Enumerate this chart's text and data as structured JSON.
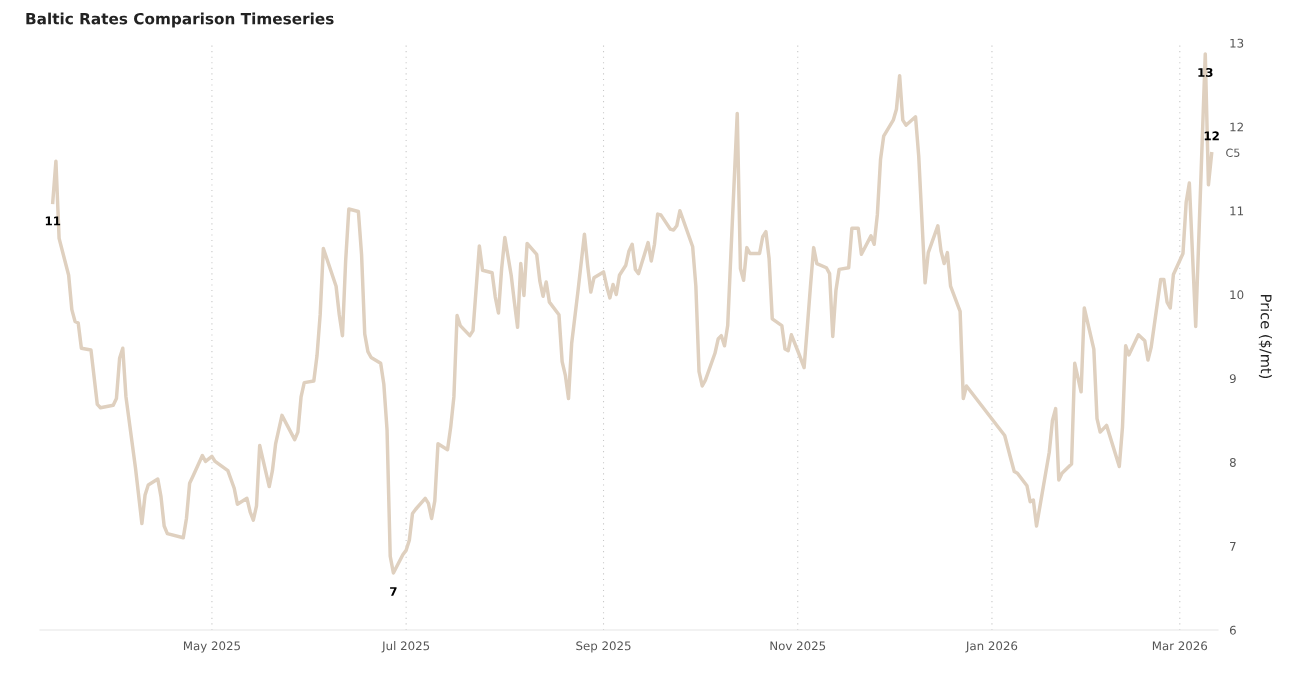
{
  "chart_data": {
    "type": "line",
    "title": "Baltic Rates Comparison Timeseries",
    "ylabel": "Price ($/mt)",
    "xlim": [
      "2025-03-08",
      "2026-03-13"
    ],
    "ylim": [
      6,
      13
    ],
    "yticks": [
      6,
      7,
      8,
      9,
      10,
      11,
      12,
      13
    ],
    "xticks": [
      {
        "value": "2025-05-01",
        "label": "May 2025"
      },
      {
        "value": "2025-07-01",
        "label": "Jul 2025"
      },
      {
        "value": "2025-09-01",
        "label": "Sep 2025"
      },
      {
        "value": "2025-11-01",
        "label": "Nov 2025"
      },
      {
        "value": "2026-01-01",
        "label": "Jan 2026"
      },
      {
        "value": "2026-03-01",
        "label": "Mar 2026"
      }
    ],
    "grid": "x",
    "legend": false,
    "marker": "none",
    "line_style": "solid",
    "series": [
      {
        "name": "C5",
        "color": "#dfd0bf",
        "x": [
          "2025-03-12",
          "2025-03-13",
          "2025-03-14",
          "2025-03-17",
          "2025-03-18",
          "2025-03-19",
          "2025-03-20",
          "2025-03-21",
          "2025-03-24",
          "2025-03-26",
          "2025-03-27",
          "2025-03-31",
          "2025-04-01",
          "2025-04-02",
          "2025-04-03",
          "2025-04-04",
          "2025-04-07",
          "2025-04-09",
          "2025-04-10",
          "2025-04-11",
          "2025-04-14",
          "2025-04-15",
          "2025-04-16",
          "2025-04-17",
          "2025-04-22",
          "2025-04-23",
          "2025-04-24",
          "2025-04-25",
          "2025-04-28",
          "2025-04-29",
          "2025-05-01",
          "2025-05-02",
          "2025-05-06",
          "2025-05-08",
          "2025-05-09",
          "2025-05-12",
          "2025-05-13",
          "2025-05-14",
          "2025-05-15",
          "2025-05-16",
          "2025-05-19",
          "2025-05-20",
          "2025-05-21",
          "2025-05-23",
          "2025-05-27",
          "2025-05-28",
          "2025-05-29",
          "2025-05-30",
          "2025-06-02",
          "2025-06-03",
          "2025-06-04",
          "2025-06-05",
          "2025-06-09",
          "2025-06-10",
          "2025-06-11",
          "2025-06-12",
          "2025-06-13",
          "2025-06-16",
          "2025-06-17",
          "2025-06-18",
          "2025-06-19",
          "2025-06-20",
          "2025-06-23",
          "2025-06-24",
          "2025-06-25",
          "2025-06-26",
          "2025-06-27",
          "2025-06-30",
          "2025-07-01",
          "2025-07-02",
          "2025-07-03",
          "2025-07-04",
          "2025-07-07",
          "2025-07-08",
          "2025-07-09",
          "2025-07-10",
          "2025-07-11",
          "2025-07-14",
          "2025-07-15",
          "2025-07-16",
          "2025-07-17",
          "2025-07-18",
          "2025-07-21",
          "2025-07-22",
          "2025-07-24",
          "2025-07-25",
          "2025-07-28",
          "2025-07-29",
          "2025-07-30",
          "2025-07-31",
          "2025-08-01",
          "2025-08-03",
          "2025-08-04",
          "2025-08-05",
          "2025-08-06",
          "2025-08-07",
          "2025-08-08",
          "2025-08-11",
          "2025-08-12",
          "2025-08-13",
          "2025-08-14",
          "2025-08-15",
          "2025-08-18",
          "2025-08-19",
          "2025-08-20",
          "2025-08-21",
          "2025-08-22",
          "2025-08-24",
          "2025-08-26",
          "2025-08-27",
          "2025-08-28",
          "2025-08-29",
          "2025-09-01",
          "2025-09-02",
          "2025-09-03",
          "2025-09-04",
          "2025-09-05",
          "2025-09-06",
          "2025-09-08",
          "2025-09-09",
          "2025-09-10",
          "2025-09-11",
          "2025-09-12",
          "2025-09-15",
          "2025-09-16",
          "2025-09-17",
          "2025-09-18",
          "2025-09-19",
          "2025-09-22",
          "2025-09-23",
          "2025-09-24",
          "2025-09-25",
          "2025-09-29",
          "2025-09-30",
          "2025-10-01",
          "2025-10-02",
          "2025-10-03",
          "2025-10-06",
          "2025-10-07",
          "2025-10-08",
          "2025-10-09",
          "2025-10-10",
          "2025-10-11",
          "2025-10-13",
          "2025-10-14",
          "2025-10-15",
          "2025-10-16",
          "2025-10-17",
          "2025-10-20",
          "2025-10-21",
          "2025-10-22",
          "2025-10-23",
          "2025-10-24",
          "2025-10-27",
          "2025-10-28",
          "2025-10-29",
          "2025-10-30",
          "2025-11-01",
          "2025-11-03",
          "2025-11-04",
          "2025-11-05",
          "2025-11-06",
          "2025-11-07",
          "2025-11-10",
          "2025-11-11",
          "2025-11-12",
          "2025-11-13",
          "2025-11-14",
          "2025-11-17",
          "2025-11-18",
          "2025-11-20",
          "2025-11-21",
          "2025-11-24",
          "2025-11-25",
          "2025-11-26",
          "2025-11-27",
          "2025-11-28",
          "2025-12-01",
          "2025-12-02",
          "2025-12-03",
          "2025-12-04",
          "2025-12-05",
          "2025-12-08",
          "2025-12-09",
          "2025-12-11",
          "2025-12-12",
          "2025-12-15",
          "2025-12-16",
          "2025-12-17",
          "2025-12-18",
          "2025-12-19",
          "2025-12-22",
          "2025-12-23",
          "2025-12-24",
          "2026-01-05",
          "2026-01-07",
          "2026-01-08",
          "2026-01-09",
          "2026-01-12",
          "2026-01-13",
          "2026-01-14",
          "2026-01-15",
          "2026-01-19",
          "2026-01-20",
          "2026-01-21",
          "2026-01-22",
          "2026-01-23",
          "2026-01-26",
          "2026-01-27",
          "2026-01-29",
          "2026-01-30",
          "2026-02-02",
          "2026-02-03",
          "2026-02-04",
          "2026-02-06",
          "2026-02-10",
          "2026-02-11",
          "2026-02-12",
          "2026-02-13",
          "2026-02-16",
          "2026-02-18",
          "2026-02-19",
          "2026-02-20",
          "2026-02-23",
          "2026-02-24",
          "2026-02-25",
          "2026-02-26",
          "2026-02-27",
          "2026-03-02",
          "2026-03-03",
          "2026-03-04",
          "2026-03-06",
          "2026-03-09",
          "2026-03-10",
          "2026-03-11"
        ],
        "values": [
          11.1,
          11.59,
          10.67,
          10.23,
          9.82,
          9.68,
          9.66,
          9.36,
          9.34,
          8.69,
          8.65,
          8.68,
          8.76,
          9.24,
          9.36,
          8.78,
          7.93,
          7.27,
          7.61,
          7.73,
          7.8,
          7.59,
          7.24,
          7.15,
          7.1,
          7.33,
          7.75,
          7.83,
          8.08,
          8.01,
          8.07,
          8.01,
          7.9,
          7.69,
          7.5,
          7.57,
          7.41,
          7.31,
          7.48,
          8.2,
          7.71,
          7.9,
          8.22,
          8.56,
          8.27,
          8.36,
          8.78,
          8.95,
          8.97,
          9.27,
          9.76,
          10.55,
          10.1,
          9.76,
          9.51,
          10.4,
          11.02,
          10.99,
          10.48,
          9.53,
          9.32,
          9.25,
          9.18,
          8.93,
          8.39,
          6.88,
          6.68,
          6.9,
          6.95,
          7.07,
          7.39,
          7.44,
          7.57,
          7.51,
          7.33,
          7.54,
          8.22,
          8.15,
          8.42,
          8.78,
          9.75,
          9.63,
          9.51,
          9.57,
          10.58,
          10.29,
          10.26,
          9.97,
          9.78,
          10.31,
          10.68,
          10.23,
          9.91,
          9.61,
          10.37,
          9.99,
          10.61,
          10.48,
          10.16,
          9.98,
          10.15,
          9.91,
          9.76,
          9.2,
          9.04,
          8.76,
          9.42,
          10.05,
          10.72,
          10.35,
          10.03,
          10.2,
          10.27,
          10.1,
          9.96,
          10.12,
          10.0,
          10.23,
          10.35,
          10.52,
          10.6,
          10.3,
          10.25,
          10.62,
          10.4,
          10.6,
          10.96,
          10.95,
          10.78,
          10.77,
          10.82,
          11.0,
          10.57,
          10.1,
          9.08,
          8.91,
          8.98,
          9.3,
          9.47,
          9.51,
          9.39,
          9.63,
          10.48,
          12.16,
          10.31,
          10.17,
          10.56,
          10.49,
          10.49,
          10.69,
          10.75,
          10.43,
          9.71,
          9.63,
          9.35,
          9.33,
          9.52,
          9.33,
          9.13,
          9.61,
          10.1,
          10.56,
          10.37,
          10.32,
          10.25,
          9.5,
          10.05,
          10.3,
          10.32,
          10.79,
          10.79,
          10.48,
          10.7,
          10.6,
          10.95,
          11.61,
          11.89,
          12.08,
          12.21,
          12.61,
          12.08,
          12.02,
          12.12,
          11.65,
          10.14,
          10.5,
          10.82,
          10.52,
          10.37,
          10.5,
          10.1,
          9.8,
          8.76,
          8.91,
          8.32,
          8.03,
          7.89,
          7.87,
          7.72,
          7.53,
          7.55,
          7.24,
          8.12,
          8.5,
          8.64,
          7.79,
          7.87,
          7.98,
          9.18,
          8.84,
          9.84,
          9.35,
          8.52,
          8.36,
          8.44,
          7.95,
          8.42,
          9.39,
          9.28,
          9.52,
          9.45,
          9.22,
          9.37,
          10.18,
          10.18,
          9.91,
          9.84,
          10.24,
          10.49,
          11.1,
          11.33,
          9.62,
          12.87,
          11.31,
          11.68
        ],
        "value_labels": [
          "11",
          null,
          null,
          null,
          null,
          null,
          null,
          null,
          null,
          null,
          null,
          null,
          null,
          null,
          null,
          null,
          null,
          null,
          null,
          null,
          null,
          null,
          null,
          null,
          null,
          null,
          null,
          null,
          null,
          null,
          null,
          null,
          null,
          null,
          null,
          null,
          null,
          null,
          null,
          null,
          null,
          null,
          null,
          null,
          null,
          null,
          null,
          null,
          null,
          null,
          null,
          null,
          null,
          null,
          null,
          null,
          null,
          null,
          null,
          null,
          null,
          null,
          null,
          null,
          null,
          null,
          "7",
          null,
          null,
          null,
          null,
          null,
          null,
          null,
          null,
          null,
          null,
          null,
          null,
          null,
          null,
          null,
          null,
          null,
          null,
          null,
          null,
          null,
          null,
          null,
          null,
          null,
          null,
          null,
          null,
          null,
          null,
          null,
          null,
          null,
          null,
          null,
          null,
          null,
          null,
          null,
          null,
          null,
          null,
          null,
          null,
          null,
          null,
          null,
          null,
          null,
          null,
          null,
          null,
          null,
          null,
          null,
          null,
          null,
          null,
          null,
          null,
          null,
          null,
          null,
          null,
          null,
          null,
          null,
          null,
          null,
          null,
          null,
          null,
          null,
          null,
          null,
          null,
          null,
          null,
          null,
          null,
          null,
          null,
          null,
          null,
          null,
          null,
          null,
          null,
          null,
          null,
          null,
          null,
          null,
          null,
          null,
          null,
          null,
          null,
          null,
          null,
          null,
          null,
          null,
          null,
          null,
          null,
          null,
          null,
          null,
          null,
          null,
          null,
          null,
          null,
          null,
          null,
          null,
          null,
          null,
          null,
          null,
          null,
          null,
          null,
          null,
          null,
          null,
          null,
          null,
          null,
          null,
          null,
          null,
          null,
          null,
          null,
          null,
          null,
          null,
          null,
          null,
          null,
          null,
          null,
          null,
          null,
          null,
          null,
          null,
          null,
          null,
          null,
          null,
          null,
          null,
          null,
          null,
          null,
          null,
          null,
          null,
          null,
          null,
          null,
          null,
          "13",
          null,
          "12"
        ]
      }
    ]
  }
}
